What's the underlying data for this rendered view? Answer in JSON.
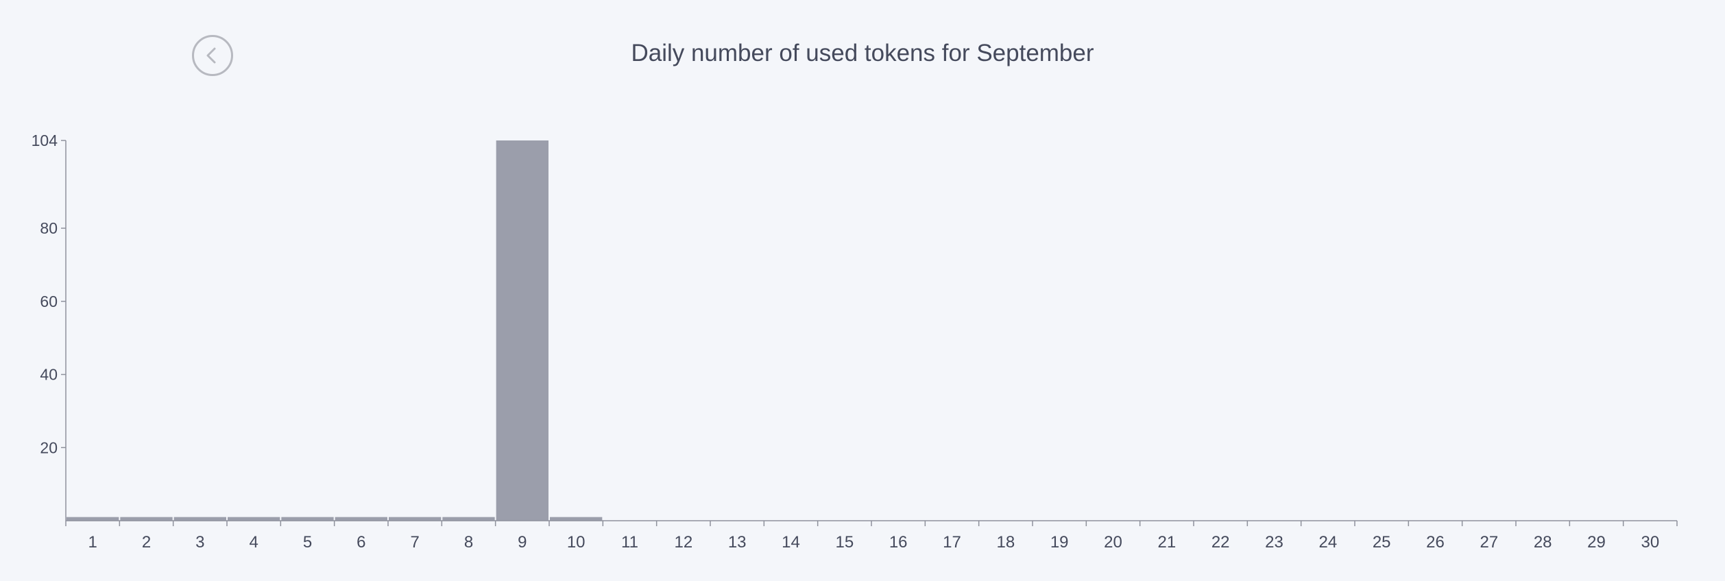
{
  "header": {
    "back_icon": "chevron-left-icon"
  },
  "chart_data": {
    "type": "bar",
    "title": "Daily number of used tokens for September",
    "xlabel": "",
    "ylabel": "",
    "categories": [
      "1",
      "2",
      "3",
      "4",
      "5",
      "6",
      "7",
      "8",
      "9",
      "10",
      "11",
      "12",
      "13",
      "14",
      "15",
      "16",
      "17",
      "18",
      "19",
      "20",
      "21",
      "22",
      "23",
      "24",
      "25",
      "26",
      "27",
      "28",
      "29",
      "30"
    ],
    "values": [
      1,
      1,
      1,
      1,
      1,
      1,
      1,
      1,
      104,
      1,
      0,
      0,
      0,
      0,
      0,
      0,
      0,
      0,
      0,
      0,
      0,
      0,
      0,
      0,
      0,
      0,
      0,
      0,
      0,
      0
    ],
    "ylim": [
      0,
      104
    ],
    "yticks": [
      20,
      40,
      60,
      80,
      104
    ],
    "grid": false,
    "colors": {
      "bar": "#9b9eab",
      "axis": "#8e919c",
      "text": "#454a5c"
    }
  }
}
